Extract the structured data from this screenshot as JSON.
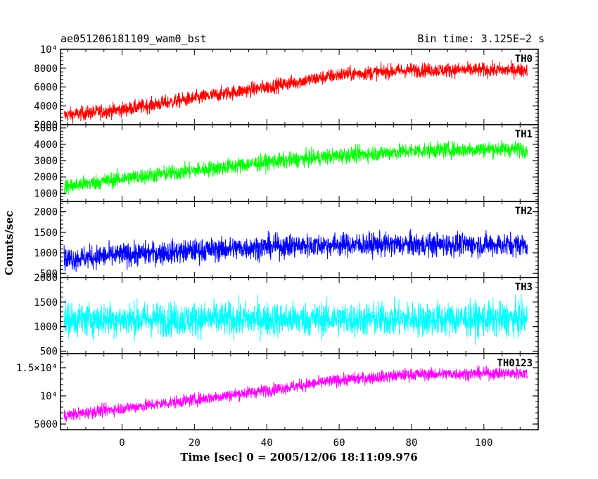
{
  "header": {
    "title": "ae051206181109_wam0_bst",
    "bin_time": "Bin time: 3.125E−2 s"
  },
  "xlabel": "Time [sec] 0 = 2005/12/06 18:11:09.976",
  "ylabel": "Counts/sec",
  "chart_data": {
    "type": "line",
    "xlim": [
      -17,
      115
    ],
    "x_data_range": [
      -16,
      112
    ],
    "x_ticks": [
      0,
      20,
      40,
      60,
      80,
      100
    ],
    "x_tick_labels": [
      "0",
      "20",
      "40",
      "60",
      "80",
      "100"
    ],
    "panels": [
      {
        "label": "TH0",
        "color": "#ff0000",
        "ylim": [
          2000,
          10000
        ],
        "y_ticks": [
          2000,
          4000,
          6000,
          8000,
          10000
        ],
        "y_tick_labels": [
          "2000",
          "4000",
          "6000",
          "8000",
          "10⁴"
        ],
        "trend": {
          "x": [
            -16,
            0,
            20,
            40,
            60,
            80,
            100,
            112
          ],
          "y": [
            3000,
            3600,
            4800,
            6000,
            7300,
            7800,
            7800,
            7800
          ]
        },
        "noise": 700
      },
      {
        "label": "TH1",
        "color": "#00ff00",
        "ylim": [
          500,
          5200
        ],
        "y_ticks": [
          1000,
          2000,
          3000,
          4000,
          5000
        ],
        "y_tick_labels": [
          "1000",
          "2000",
          "3000",
          "4000",
          "5000"
        ],
        "trend": {
          "x": [
            -16,
            0,
            20,
            40,
            60,
            80,
            100,
            112
          ],
          "y": [
            1400,
            1900,
            2400,
            2900,
            3300,
            3600,
            3700,
            3700
          ]
        },
        "noise": 450
      },
      {
        "label": "TH2",
        "color": "#0000ff",
        "ylim": [
          400,
          2250
        ],
        "y_ticks": [
          500,
          1000,
          1500,
          2000
        ],
        "y_tick_labels": [
          "500",
          "1000",
          "1500",
          "2000"
        ],
        "trend": {
          "x": [
            -16,
            0,
            20,
            40,
            60,
            80,
            100,
            112
          ],
          "y": [
            850,
            950,
            1050,
            1150,
            1200,
            1200,
            1200,
            1200
          ]
        },
        "noise": 260
      },
      {
        "label": "TH3",
        "color": "#00ffff",
        "ylim": [
          450,
          2000
        ],
        "y_ticks": [
          500,
          1000,
          1500,
          2000
        ],
        "y_tick_labels": [
          "500",
          "1000",
          "1500",
          "2000"
        ],
        "trend": {
          "x": [
            -16,
            0,
            20,
            40,
            60,
            80,
            100,
            112
          ],
          "y": [
            1150,
            1150,
            1150,
            1150,
            1150,
            1150,
            1150,
            1150
          ]
        },
        "noise": 320
      },
      {
        "label": "TH0123",
        "color": "#ff00ff",
        "ylim": [
          4000,
          17500
        ],
        "y_ticks": [
          5000,
          10000,
          15000
        ],
        "y_tick_labels": [
          "5000",
          "10⁴",
          "1.5×10⁴"
        ],
        "trend": {
          "x": [
            -16,
            0,
            20,
            40,
            60,
            80,
            100,
            112
          ],
          "y": [
            6500,
            7800,
            9300,
            11000,
            12800,
            13800,
            14000,
            14000
          ]
        },
        "noise": 1000
      }
    ]
  }
}
